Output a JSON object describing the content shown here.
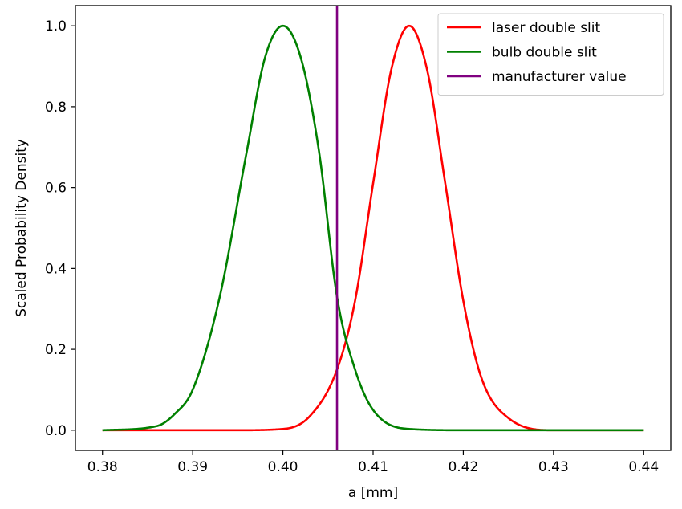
{
  "chart_data": {
    "type": "line",
    "title": "",
    "xlabel": "a [mm]",
    "ylabel": "Scaled Probability Density",
    "xlim": [
      0.377,
      0.443
    ],
    "ylim": [
      -0.05,
      1.05
    ],
    "xticks": [
      0.38,
      0.39,
      0.4,
      0.41,
      0.42,
      0.43,
      0.44
    ],
    "xtick_labels": [
      "0.38",
      "0.39",
      "0.40",
      "0.41",
      "0.42",
      "0.43",
      "0.44"
    ],
    "yticks": [
      0.0,
      0.2,
      0.4,
      0.6,
      0.8,
      1.0
    ],
    "ytick_labels": [
      "0.0",
      "0.2",
      "0.4",
      "0.6",
      "0.8",
      "1.0"
    ],
    "grid": false,
    "legend_position": "top-right",
    "series": [
      {
        "name": "laser double slit",
        "color": "#ff0000",
        "x": [
          0.38,
          0.395,
          0.4,
          0.403,
          0.406,
          0.408,
          0.41,
          0.412,
          0.414,
          0.416,
          0.418,
          0.42,
          0.422,
          0.425,
          0.43,
          0.44
        ],
        "y": [
          0.0,
          0.0,
          0.003,
          0.035,
          0.15,
          0.32,
          0.61,
          0.89,
          1.0,
          0.89,
          0.61,
          0.32,
          0.13,
          0.03,
          0.0,
          0.0
        ]
      },
      {
        "name": "bulb double slit",
        "color": "#008000",
        "x": [
          0.38,
          0.386,
          0.388,
          0.39,
          0.393,
          0.396,
          0.398,
          0.4,
          0.402,
          0.404,
          0.406,
          0.408,
          0.41,
          0.414,
          0.42,
          0.44
        ],
        "y": [
          0.0,
          0.01,
          0.04,
          0.1,
          0.33,
          0.69,
          0.92,
          1.0,
          0.92,
          0.69,
          0.33,
          0.15,
          0.05,
          0.003,
          0.0,
          0.0
        ]
      }
    ],
    "vlines": [
      {
        "name": "manufacturer value",
        "x": 0.406,
        "color": "#800080"
      }
    ]
  }
}
